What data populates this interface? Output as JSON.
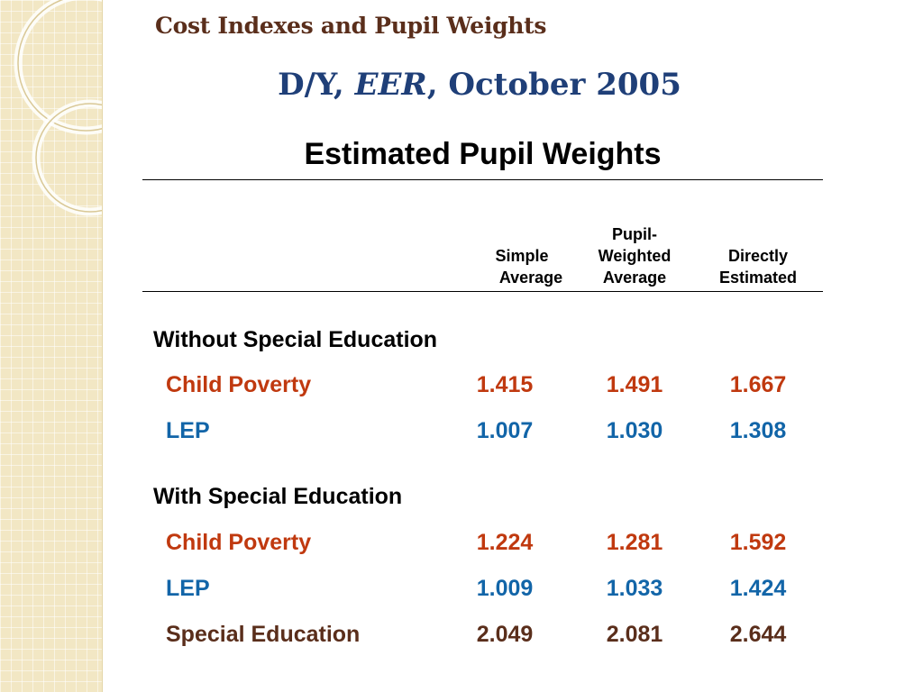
{
  "colors": {
    "title": "#5a2e1b",
    "subtitle": "#1f3f78",
    "poverty": "#c0390f",
    "lep": "#1265a8",
    "special": "#5a2e1b",
    "panel": "#f2e7c4"
  },
  "header": {
    "title": "Cost Indexes and Pupil Weights",
    "subtitle_pre": "D/Y, ",
    "subtitle_em": "EER",
    "subtitle_post": ", October 2005"
  },
  "table": {
    "heading": "Estimated Pupil Weights",
    "columns": [
      {
        "lines": [
          "Simple",
          "Average"
        ]
      },
      {
        "lines": [
          "Pupil-",
          "Weighted",
          "Average"
        ]
      },
      {
        "lines": [
          "Directly",
          "Estimated"
        ]
      }
    ],
    "groups": [
      {
        "label": "Without Special Education",
        "rows": [
          {
            "label": "Child Poverty",
            "values": [
              "1.415",
              "1.491",
              "1.667"
            ],
            "color_key": "poverty"
          },
          {
            "label": "LEP",
            "values": [
              "1.007",
              "1.030",
              "1.308"
            ],
            "color_key": "lep"
          }
        ]
      },
      {
        "label": "With Special Education",
        "rows": [
          {
            "label": "Child Poverty",
            "values": [
              "1.224",
              "1.281",
              "1.592"
            ],
            "color_key": "poverty"
          },
          {
            "label": "LEP",
            "values": [
              "1.009",
              "1.033",
              "1.424"
            ],
            "color_key": "lep"
          },
          {
            "label": "Special Education",
            "values": [
              "2.049",
              "2.081",
              "2.644"
            ],
            "color_key": "special"
          }
        ]
      }
    ]
  }
}
